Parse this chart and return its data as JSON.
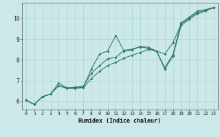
{
  "xlabel": "Humidex (Indice chaleur)",
  "bg_color": "#cce8e8",
  "line_color": "#2e7b6e",
  "grid_color": "#aad4d4",
  "xlim": [
    -0.5,
    23.5
  ],
  "ylim": [
    5.6,
    10.75
  ],
  "xticks": [
    0,
    1,
    2,
    3,
    4,
    5,
    6,
    7,
    8,
    9,
    10,
    11,
    12,
    13,
    14,
    15,
    16,
    17,
    18,
    19,
    20,
    21,
    22,
    23
  ],
  "yticks": [
    6,
    7,
    8,
    9,
    10
  ],
  "line1_x": [
    0,
    1,
    2,
    3,
    4,
    5,
    6,
    7,
    8,
    9,
    10,
    11,
    12,
    13,
    14,
    15,
    16,
    17,
    18,
    19,
    20,
    21,
    22,
    23
  ],
  "line1_y": [
    6.05,
    5.85,
    6.22,
    6.35,
    6.88,
    6.65,
    6.65,
    6.68,
    7.55,
    8.28,
    8.42,
    9.18,
    8.42,
    8.48,
    8.65,
    8.6,
    8.42,
    7.62,
    8.25,
    9.78,
    10.05,
    10.35,
    10.42,
    10.52
  ],
  "line2_x": [
    0,
    1,
    2,
    3,
    4,
    5,
    6,
    7,
    8,
    9,
    10,
    11,
    12,
    13,
    14,
    15,
    16,
    17,
    18,
    19,
    20,
    21,
    22,
    23
  ],
  "line2_y": [
    6.05,
    5.85,
    6.22,
    6.35,
    6.75,
    6.65,
    6.68,
    6.72,
    7.35,
    7.72,
    8.05,
    8.12,
    8.45,
    8.52,
    8.62,
    8.55,
    8.42,
    8.28,
    8.82,
    9.72,
    10.02,
    10.28,
    10.38,
    10.52
  ],
  "line3_x": [
    0,
    1,
    2,
    3,
    4,
    5,
    6,
    7,
    8,
    9,
    10,
    11,
    12,
    13,
    14,
    15,
    16,
    17,
    18,
    19,
    20,
    21,
    22,
    23
  ],
  "line3_y": [
    6.05,
    5.85,
    6.22,
    6.35,
    6.75,
    6.62,
    6.62,
    6.65,
    7.1,
    7.45,
    7.72,
    7.88,
    8.08,
    8.22,
    8.35,
    8.5,
    8.42,
    7.55,
    8.18,
    9.65,
    9.95,
    10.22,
    10.35,
    10.52
  ]
}
